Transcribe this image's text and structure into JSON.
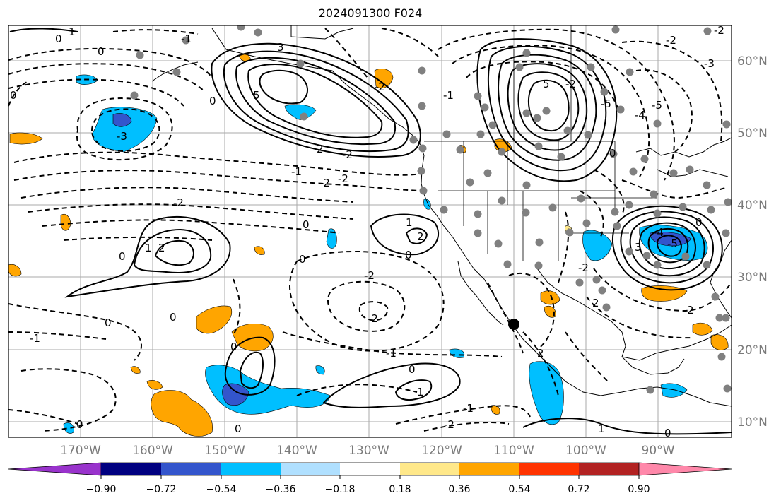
{
  "title": "2024091300 F024",
  "longitude_labels": [
    "170°W",
    "160°W",
    "150°W",
    "140°W",
    "130°W",
    "120°W",
    "110°W",
    "100°W",
    "90°W"
  ],
  "latitude_labels": [
    "60°N",
    "50°N",
    "40°N",
    "30°N",
    "20°N",
    "10°N"
  ],
  "colorbar": {
    "tick_labels": [
      "−0.90",
      "−0.72",
      "−0.54",
      "−0.36",
      "−0.18",
      "0.18",
      "0.36",
      "0.54",
      "0.72",
      "0.90"
    ],
    "colors": [
      "#9933cc",
      "#000080",
      "#3355cc",
      "#00bfff",
      "#b0e0ff",
      "#ffffff",
      "#ffe88a",
      "#ffa500",
      "#ff3300",
      "#b22222",
      "#ff88aa"
    ]
  },
  "contour_labels": [
    "0",
    "1",
    "-1",
    "-2",
    "2",
    "3",
    "-3",
    "5",
    "-5",
    "4",
    "-4",
    "0",
    "2",
    "-2",
    "1",
    "-1",
    "0",
    "-1",
    "2",
    "0",
    "-2",
    "2",
    "1",
    "-1",
    "2",
    "0",
    "0",
    "-1",
    "1",
    "-2",
    "0"
  ],
  "colors": {
    "station_dot": "#808080",
    "marker": "#000000",
    "grid": "#aaaaaa",
    "fill_blue": "#00bfff",
    "fill_light_blue": "#b0e0ff",
    "fill_dark_blue": "#3355cc",
    "fill_orange": "#ffa500",
    "fill_yellow": "#ffe88a"
  }
}
